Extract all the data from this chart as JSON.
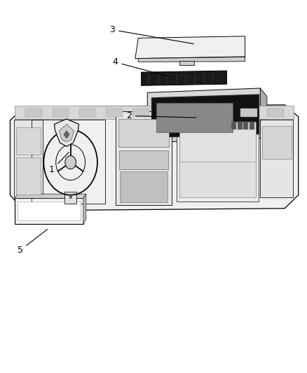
{
  "background_color": "#ffffff",
  "line_color": "#000000",
  "fig_width": 4.38,
  "fig_height": 5.33,
  "dpi": 100
}
